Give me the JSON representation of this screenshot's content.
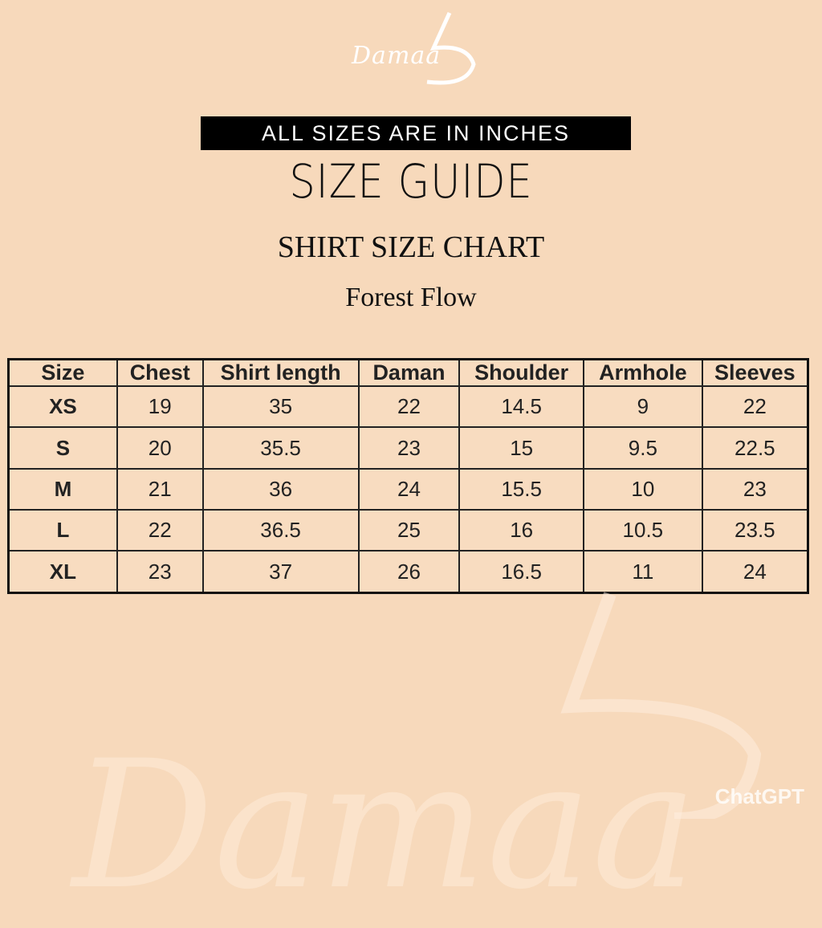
{
  "brand": {
    "logo_text": "Damaa"
  },
  "banner": "ALL SIZES ARE IN INCHES",
  "title": "SIZE GUIDE",
  "subtitle": "SHIRT SIZE CHART",
  "product_name": "Forest Flow",
  "table": {
    "headers": [
      "Size",
      "Chest",
      "Shirt length",
      "Daman",
      "Shoulder",
      "Armhole",
      "Sleeves"
    ],
    "rows": [
      [
        "XS",
        "19",
        "35",
        "22",
        "14.5",
        "9",
        "22"
      ],
      [
        "S",
        "20",
        "35.5",
        "23",
        "15",
        "9.5",
        "22.5"
      ],
      [
        "M",
        "21",
        "36",
        "24",
        "15.5",
        "10",
        "23"
      ],
      [
        "L",
        "22",
        "36.5",
        "25",
        "16",
        "10.5",
        "23.5"
      ],
      [
        "XL",
        "23",
        "37",
        "26",
        "16.5",
        "11",
        "24"
      ]
    ]
  },
  "watermark": {
    "text": "ChatGPT"
  },
  "colors": {
    "background": "#f7d9bb",
    "banner": "#000000"
  }
}
